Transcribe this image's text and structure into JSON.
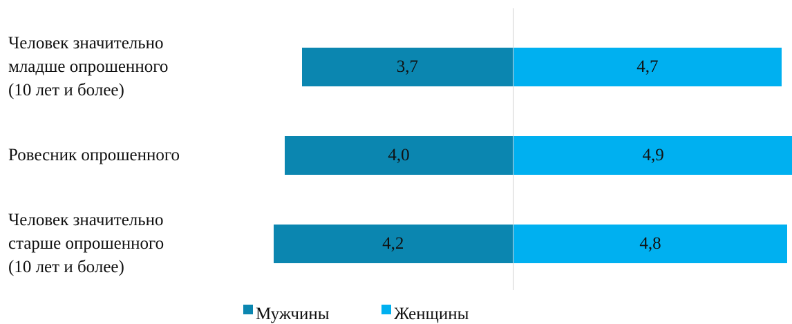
{
  "chart_data": {
    "type": "bar",
    "orientation": "diverging",
    "categories": [
      "Человек значительно\nмладше опрошенного\n(10 лет и более)",
      "Ровесник опрошенного",
      "Человек значительно\nстарше опрошенного\n(10 лет и более)"
    ],
    "series": [
      {
        "name": "Мужчины",
        "color": "#0b86b0",
        "side": "left",
        "values": [
          3.7,
          4.0,
          4.2
        ],
        "value_labels": [
          "3,7",
          "4,0",
          "4,2"
        ]
      },
      {
        "name": "Женщины",
        "color": "#00b0f0",
        "side": "right",
        "values": [
          4.7,
          4.9,
          4.8
        ],
        "value_labels": [
          "4,7",
          "4,9",
          "4,8"
        ]
      }
    ],
    "legend": "bottom"
  }
}
